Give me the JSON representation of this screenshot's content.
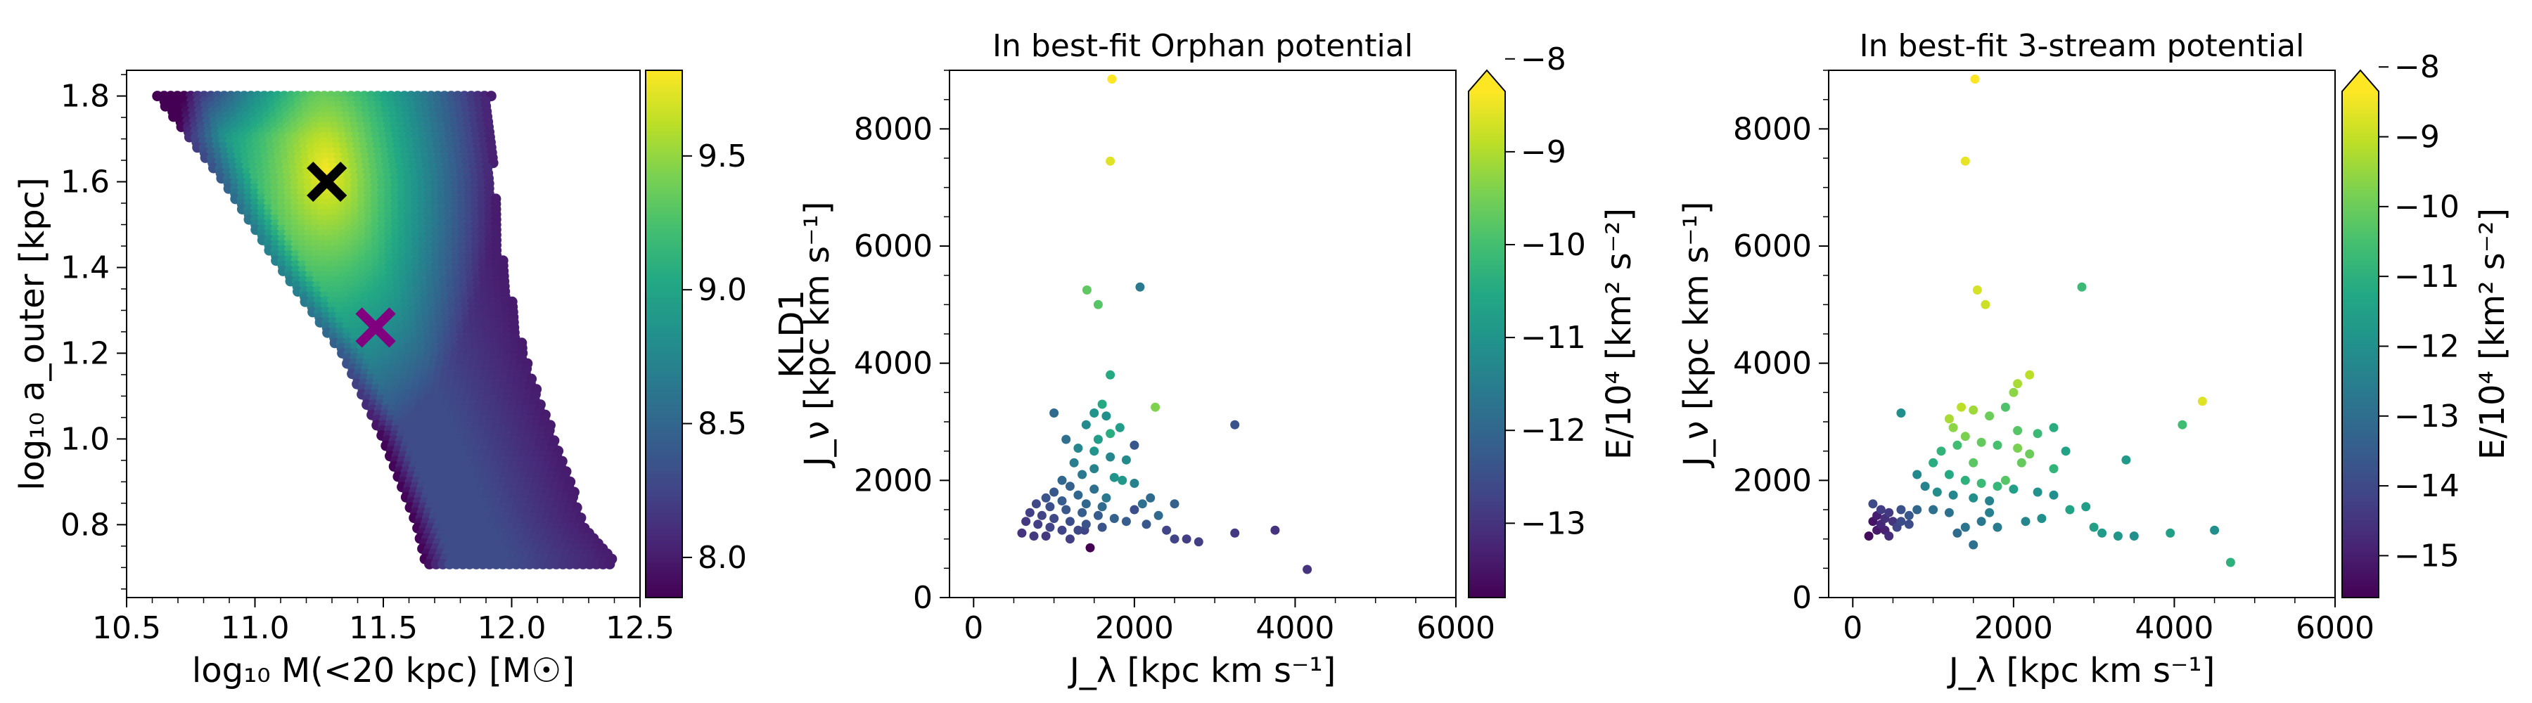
{
  "figure": {
    "background": "#ffffff"
  },
  "chart_data": [
    {
      "type": "heatmap",
      "title": "",
      "xlabel": "log₁₀ M(<20 kpc) [M☉]",
      "ylabel": "log₁₀ a_outer [kpc]",
      "xlim": [
        10.5,
        12.5
      ],
      "ylim": [
        0.63,
        1.86
      ],
      "xticks": [
        10.5,
        11.0,
        11.5,
        12.0,
        12.5
      ],
      "xtick_labels": [
        "10.5",
        "11.0",
        "11.5",
        "12.0",
        "12.5"
      ],
      "yticks": [
        0.8,
        1.0,
        1.2,
        1.4,
        1.6,
        1.8
      ],
      "ytick_labels": [
        "0.8",
        "1.0",
        "1.2",
        "1.4",
        "1.6",
        "1.8"
      ],
      "colorbar": {
        "label": "KLD1",
        "range": [
          7.85,
          9.82
        ],
        "ticks": [
          8.0,
          8.5,
          9.0,
          9.5
        ],
        "tick_labels": [
          "8.0",
          "8.5",
          "9.0",
          "9.5"
        ],
        "extend": false
      },
      "region": {
        "upper_y": 1.8,
        "lower_y": 0.7,
        "left_edge": [
          [
            1.8,
            10.62
          ],
          [
            1.6,
            10.88
          ],
          [
            1.4,
            11.1
          ],
          [
            1.2,
            11.34
          ],
          [
            1.0,
            11.5
          ],
          [
            0.8,
            11.63
          ],
          [
            0.7,
            11.67
          ]
        ],
        "right_edge": [
          [
            1.8,
            11.92
          ],
          [
            1.6,
            11.93
          ],
          [
            1.4,
            11.97
          ],
          [
            1.2,
            12.05
          ],
          [
            1.0,
            12.17
          ],
          [
            0.8,
            12.29
          ],
          [
            0.72,
            12.4
          ]
        ]
      },
      "peak": {
        "x": 11.28,
        "y": 1.62,
        "value": 9.8
      },
      "markers": [
        {
          "name": "Orphan best-fit",
          "x": 11.28,
          "y": 1.6,
          "color": "#000000",
          "symbol": "X"
        },
        {
          "name": "3-stream best-fit",
          "x": 11.47,
          "y": 1.26,
          "color": "#800080",
          "symbol": "X"
        }
      ]
    },
    {
      "type": "scatter",
      "title": "In best-fit Orphan potential",
      "title_color": "#000000",
      "xlabel": "J_λ [kpc km s⁻¹]",
      "ylabel": "J_ν [kpc km s⁻¹]",
      "xlim": [
        -300,
        6000
      ],
      "ylim": [
        0,
        9000
      ],
      "xticks": [
        0,
        2000,
        4000,
        6000
      ],
      "xtick_labels": [
        "0",
        "2000",
        "4000",
        "6000"
      ],
      "yticks": [
        0,
        2000,
        4000,
        6000,
        8000
      ],
      "ytick_labels": [
        "0",
        "2000",
        "4000",
        "6000",
        "8000"
      ],
      "colorbar": {
        "label": "E/10⁴ [km² s⁻²]",
        "range": [
          -13.8,
          -8.35
        ],
        "ticks": [
          -13,
          -12,
          -11,
          -10,
          -9,
          -8
        ],
        "tick_labels": [
          "−13",
          "−12",
          "−11",
          "−10",
          "−9",
          "−8"
        ],
        "extend": "max"
      },
      "points": [
        [
          1720,
          8850,
          -8.0
        ],
        [
          1700,
          7450,
          -8.6
        ],
        [
          1410,
          5250,
          -9.7
        ],
        [
          1550,
          5000,
          -9.8
        ],
        [
          2070,
          5300,
          -11.6
        ],
        [
          2260,
          3250,
          -9.4
        ],
        [
          1700,
          3800,
          -10.5
        ],
        [
          1600,
          3300,
          -10.5
        ],
        [
          1500,
          3150,
          -11.0
        ],
        [
          1650,
          3100,
          -11.1
        ],
        [
          1820,
          2900,
          -10.8
        ],
        [
          1400,
          2950,
          -11.2
        ],
        [
          1550,
          2700,
          -10.8
        ],
        [
          1300,
          2550,
          -11.3
        ],
        [
          1250,
          2300,
          -11.5
        ],
        [
          1700,
          2400,
          -11.3
        ],
        [
          1900,
          2350,
          -11.2
        ],
        [
          1500,
          2200,
          -11.4
        ],
        [
          1350,
          2100,
          -11.6
        ],
        [
          1850,
          2000,
          -10.9
        ],
        [
          1750,
          2050,
          -11.0
        ],
        [
          2000,
          1950,
          -11.4
        ],
        [
          1100,
          2000,
          -12.0
        ],
        [
          1200,
          1900,
          -12.1
        ],
        [
          1000,
          1800,
          -12.3
        ],
        [
          1300,
          1750,
          -12.0
        ],
        [
          1500,
          1850,
          -11.8
        ],
        [
          1650,
          1700,
          -11.6
        ],
        [
          900,
          1700,
          -12.4
        ],
        [
          1100,
          1650,
          -12.2
        ],
        [
          1400,
          1600,
          -12.0
        ],
        [
          1600,
          1550,
          -11.9
        ],
        [
          2100,
          1600,
          -11.8
        ],
        [
          2300,
          1400,
          -11.9
        ],
        [
          2500,
          1600,
          -12.1
        ],
        [
          3250,
          2950,
          -12.4
        ],
        [
          780,
          1600,
          -12.6
        ],
        [
          950,
          1550,
          -12.5
        ],
        [
          1150,
          1500,
          -12.3
        ],
        [
          1350,
          1450,
          -12.2
        ],
        [
          1550,
          1400,
          -12.2
        ],
        [
          1750,
          1350,
          -12.1
        ],
        [
          1900,
          1300,
          -12.2
        ],
        [
          2150,
          1250,
          -12.3
        ],
        [
          700,
          1450,
          -12.8
        ],
        [
          850,
          1400,
          -12.7
        ],
        [
          1000,
          1350,
          -12.6
        ],
        [
          1200,
          1300,
          -12.5
        ],
        [
          1400,
          1250,
          -12.4
        ],
        [
          1600,
          1200,
          -12.4
        ],
        [
          650,
          1300,
          -12.9
        ],
        [
          800,
          1250,
          -12.8
        ],
        [
          950,
          1200,
          -12.7
        ],
        [
          1100,
          1150,
          -12.7
        ],
        [
          1300,
          1150,
          -12.6
        ],
        [
          2400,
          1150,
          -12.7
        ],
        [
          2500,
          1000,
          -12.7
        ],
        [
          2650,
          1000,
          -12.8
        ],
        [
          2800,
          950,
          -12.8
        ],
        [
          3250,
          1100,
          -12.9
        ],
        [
          3750,
          1150,
          -13.0
        ],
        [
          4150,
          480,
          -13.0
        ],
        [
          600,
          1100,
          -13.0
        ],
        [
          750,
          1050,
          -12.9
        ],
        [
          900,
          1050,
          -12.9
        ],
        [
          1200,
          1000,
          -12.8
        ],
        [
          1380,
          1150,
          -12.7
        ],
        [
          2000,
          2600,
          -12.3
        ],
        [
          2000,
          1500,
          -12.5
        ],
        [
          1450,
          850,
          -13.8
        ],
        [
          2200,
          1700,
          -11.9
        ],
        [
          1150,
          2700,
          -11.8
        ],
        [
          1000,
          3150,
          -11.9
        ],
        [
          1500,
          2500,
          -11.0
        ],
        [
          1700,
          2800,
          -10.4
        ]
      ]
    },
    {
      "type": "scatter",
      "title": "In best-fit 3-stream potential",
      "title_color": "#800080",
      "xlabel": "J_λ [kpc km s⁻¹]",
      "ylabel": "J_ν [kpc km s⁻¹]",
      "xlim": [
        -300,
        6000
      ],
      "ylim": [
        0,
        9000
      ],
      "xticks": [
        0,
        2000,
        4000,
        6000
      ],
      "xtick_labels": [
        "0",
        "2000",
        "4000",
        "6000"
      ],
      "yticks": [
        0,
        2000,
        4000,
        6000,
        8000
      ],
      "ytick_labels": [
        "0",
        "2000",
        "4000",
        "6000",
        "8000"
      ],
      "colorbar": {
        "label": "E/10⁴ [km² s⁻²]",
        "range": [
          -15.6,
          -8.35
        ],
        "ticks": [
          -15,
          -14,
          -13,
          -12,
          -11,
          -10,
          -9,
          -8
        ],
        "tick_labels": [
          "−15",
          "−14",
          "−13",
          "−12",
          "−11",
          "−10",
          "−9",
          "−8"
        ],
        "extend": "max"
      },
      "points": [
        [
          1520,
          8850,
          -8.1
        ],
        [
          1400,
          7450,
          -8.6
        ],
        [
          1550,
          5250,
          -8.8
        ],
        [
          1650,
          5000,
          -8.9
        ],
        [
          2850,
          5300,
          -10.7
        ],
        [
          4350,
          3350,
          -8.7
        ],
        [
          4100,
          2950,
          -10.6
        ],
        [
          2200,
          3800,
          -9.1
        ],
        [
          2050,
          3650,
          -9.3
        ],
        [
          1350,
          3250,
          -9.1
        ],
        [
          1500,
          3200,
          -9.4
        ],
        [
          1200,
          3050,
          -9.3
        ],
        [
          1700,
          3100,
          -10.0
        ],
        [
          1900,
          3250,
          -10.4
        ],
        [
          2000,
          3500,
          -9.6
        ],
        [
          1250,
          2900,
          -9.6
        ],
        [
          1400,
          2750,
          -9.8
        ],
        [
          1600,
          2650,
          -10.1
        ],
        [
          1800,
          2600,
          -10.5
        ],
        [
          2050,
          2550,
          -9.8
        ],
        [
          2200,
          2450,
          -10.0
        ],
        [
          2100,
          2300,
          -10.1
        ],
        [
          2050,
          2850,
          -10.3
        ],
        [
          2500,
          2900,
          -11.1
        ],
        [
          2650,
          2500,
          -11.4
        ],
        [
          3400,
          2350,
          -11.7
        ],
        [
          1100,
          2500,
          -10.9
        ],
        [
          1000,
          2300,
          -11.1
        ],
        [
          1200,
          2100,
          -11.2
        ],
        [
          1400,
          2000,
          -11.0
        ],
        [
          1600,
          1950,
          -10.7
        ],
        [
          1800,
          1900,
          -10.8
        ],
        [
          2000,
          1850,
          -11.5
        ],
        [
          2300,
          1800,
          -11.9
        ],
        [
          2500,
          1750,
          -12.0
        ],
        [
          800,
          2100,
          -12.2
        ],
        [
          600,
          3150,
          -12.0
        ],
        [
          900,
          1900,
          -12.4
        ],
        [
          1050,
          1800,
          -12.1
        ],
        [
          1250,
          1750,
          -12.3
        ],
        [
          1500,
          1700,
          -12.0
        ],
        [
          1700,
          1650,
          -12.4
        ],
        [
          2900,
          1550,
          -11.6
        ],
        [
          2700,
          1500,
          -11.4
        ],
        [
          2350,
          1350,
          -12.0
        ],
        [
          2150,
          1300,
          -12.3
        ],
        [
          3000,
          1200,
          -11.5
        ],
        [
          3100,
          1100,
          -11.7
        ],
        [
          3300,
          1050,
          -11.8
        ],
        [
          3500,
          1050,
          -12.0
        ],
        [
          3950,
          1100,
          -11.5
        ],
        [
          4500,
          1150,
          -12.0
        ],
        [
          4700,
          600,
          -11.0
        ],
        [
          1800,
          1200,
          -12.6
        ],
        [
          1600,
          1300,
          -12.7
        ],
        [
          1400,
          1200,
          -12.8
        ],
        [
          1200,
          1450,
          -12.9
        ],
        [
          1000,
          1500,
          -13.0
        ],
        [
          800,
          1500,
          -13.2
        ],
        [
          700,
          1400,
          -13.6
        ],
        [
          600,
          1300,
          -13.9
        ],
        [
          550,
          1200,
          -14.1
        ],
        [
          450,
          1450,
          -14.4
        ],
        [
          400,
          1350,
          -14.6
        ],
        [
          350,
          1250,
          -14.8
        ],
        [
          300,
          1400,
          -15.0
        ],
        [
          250,
          1300,
          -15.2
        ],
        [
          300,
          1150,
          -15.1
        ],
        [
          200,
          1050,
          -15.4
        ],
        [
          400,
          1150,
          -14.9
        ],
        [
          500,
          1300,
          -14.5
        ],
        [
          350,
          1500,
          -14.3
        ],
        [
          250,
          1600,
          -14.0
        ],
        [
          600,
          1500,
          -13.8
        ],
        [
          450,
          1050,
          -14.7
        ],
        [
          700,
          1250,
          -13.9
        ],
        [
          1300,
          1100,
          -13.1
        ],
        [
          1500,
          900,
          -12.9
        ],
        [
          1700,
          1450,
          -12.5
        ],
        [
          2500,
          2200,
          -10.9
        ],
        [
          1900,
          2000,
          -10.3
        ],
        [
          1500,
          2300,
          -10.2
        ],
        [
          1300,
          2600,
          -10.6
        ],
        [
          2300,
          2800,
          -10.7
        ]
      ]
    }
  ]
}
